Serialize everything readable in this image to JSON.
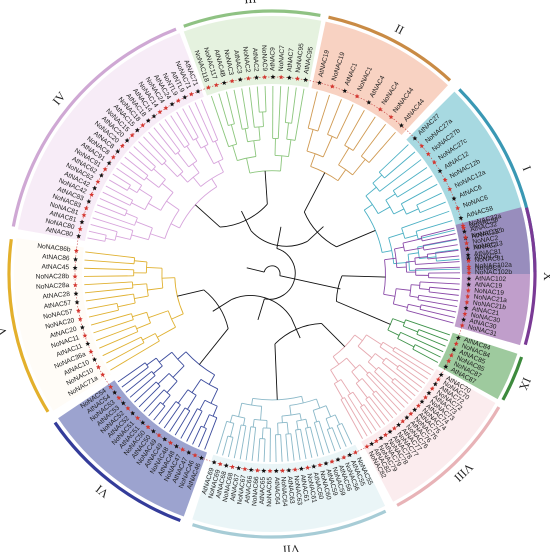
{
  "figure": {
    "type": "circular phylogenetic tree",
    "species_markers": {
      "black_star": "At",
      "red_star": "No"
    }
  },
  "clades": [
    {
      "id": "I",
      "label": "I",
      "color": "#3a98b4",
      "branch_color": "#4bb0c4",
      "fill": "#5fb9c9",
      "leaves": [
        "AtNAC27",
        "NoNAC27a",
        "NoNAC27b",
        "NoNAC27c",
        "AtNAC12",
        "NoNAC12b",
        "NoNAC12a",
        "AtNAC6",
        "NoNAC6",
        "AtNAC58",
        "NoNAC58",
        "AtNAC13",
        "NoNAC13",
        "AtNAC5",
        "NoNAC5"
      ]
    },
    {
      "id": "II",
      "label": "II",
      "color": "#c98b45",
      "branch_color": "#d09a52",
      "fill": "#f3ad8f",
      "leaves": [
        "AtNAC19",
        "NoNAC19",
        "AtNAC1",
        "NoNAC1",
        "AtNAC4",
        "NoNAC4",
        "NoNAC44",
        "AtNAC44"
      ]
    },
    {
      "id": "III",
      "label": "III",
      "color": "#8fc283",
      "branch_color": "#8cc67d",
      "fill": "#cfe8c4",
      "leaves": [
        "NoNAC118",
        "NoNAC117",
        "AtNAC4B",
        "NoNAC3",
        "AtNAC3",
        "NoNAC2",
        "AtNAC2",
        "NoNAC9",
        "AtNAC9",
        "NoNAC7",
        "AtNAC7",
        "NoNAC95",
        "AtNAC95"
      ]
    },
    {
      "id": "IV",
      "label": "IV",
      "color": "#cfa8d4",
      "branch_color": "#d7a4dc",
      "fill": "#f1ddf1",
      "leaves": [
        "AtNAC80",
        "NoNAC80",
        "AtNAC81",
        "NoNAC81",
        "NoNAC83",
        "AtNAC83",
        "NoNAC42",
        "AtNAC42",
        "NoNAC62",
        "AtNAC62",
        "NoNAC91",
        "AtNAC91",
        "NoNAC8",
        "AtNAC8",
        "NoNAC20",
        "AtNAC20",
        "NoNAC15",
        "AtNAC15",
        "NoNAC18",
        "AtNAC18",
        "AtNAC14",
        "NoNAC14",
        "NoNAC24",
        "AtNAC24",
        "NoNTL9",
        "AtNTL9",
        "NoNAC71",
        "AtNAC71"
      ]
    },
    {
      "id": "V",
      "label": "V",
      "color": "#e3b02c",
      "branch_color": "#e0b131",
      "fill": "#fffaf0",
      "leaves": [
        "NoNAC71a",
        "NoNAC10",
        "AtNAC10",
        "NoNAC36a",
        "AtNAC11",
        "NoNAC11",
        "AtNAC20",
        "NoNAC20",
        "NoNAC57",
        "AtNAC57",
        "AtNAC28",
        "NoNAC28a",
        "NoNAC28b",
        "AtNAC45",
        "AtNAC86",
        "NoNAC86b"
      ]
    },
    {
      "id": "VI",
      "label": "VI",
      "color": "#343c9a",
      "branch_color": "#3a4a9c",
      "fill": "#4a57a8",
      "leaves": [
        "AtNAC46",
        "NoNAC46",
        "AtNAC47",
        "NoNAC47",
        "AtNAC48",
        "NoNAC48",
        "AtNAC49",
        "NoNAC49",
        "AtNAC50",
        "NoNAC50",
        "AtNAC51",
        "NoNAC51",
        "AtNAC52",
        "NoNAC52",
        "AtNAC53",
        "NoNAC53",
        "AtNAC54",
        "NoNAC54"
      ]
    },
    {
      "id": "VII",
      "label": "VII",
      "color": "#a7ccd6",
      "branch_color": "#8ab8c8",
      "fill": "#d9ecf1",
      "leaves": [
        "NoNAC55",
        "AtNAC55",
        "NoNAC56",
        "AtNAC56",
        "NoNAC59",
        "AtNAC59",
        "NoNAC60",
        "AtNAC60",
        "NoNAC61",
        "AtNAC61",
        "NoNAC63",
        "AtNAC63",
        "NoNAC64",
        "AtNAC64",
        "NoNAC65",
        "AtNAC65",
        "NoNAC66",
        "AtNAC66",
        "NoNAC67",
        "AtNAC67",
        "NoNAC68",
        "AtNAC68",
        "NoNAC69",
        "AtNAC69"
      ]
    },
    {
      "id": "VIII",
      "label": "VIII",
      "color": "#e8b3b7",
      "branch_color": "#e6a9b0",
      "fill": "#f7dde0",
      "leaves": [
        "AtNAC70",
        "NoNAC70",
        "AtNAC72",
        "NoNAC72",
        "AtNAC73",
        "NoNAC73",
        "AtNAC74",
        "NoNAC74",
        "AtNAC75",
        "NoNAC75",
        "AtNAC76",
        "NoNAC76",
        "AtNAC77",
        "NoNAC77",
        "AtNAC78",
        "NoNAC78",
        "AtNAC79",
        "NoNAC79",
        "AtNAC82",
        "NoNAC82"
      ]
    },
    {
      "id": "IX",
      "label": "IX",
      "color": "#3d8a3d",
      "branch_color": "#3c9148",
      "fill": "#4e9e4e",
      "leaves": [
        "AtNAC84",
        "NoNAC84",
        "AtNAC85",
        "NoNAC85",
        "NoNAC87",
        "AtNAC87"
      ]
    },
    {
      "id": "X",
      "label": "X",
      "color": "#7a3a95",
      "branch_color": "#8a4aa8",
      "fill": "#8d4fa0",
      "leaves": [
        "NoNAC32a",
        "AtNAC32",
        "NoNAC32b",
        "NoNAC2",
        "AtNAC2",
        "AtNAC81",
        "NoNAC81",
        "NoNAC102a",
        "NoNAC102b",
        "AtNAC102",
        "AtNAC19",
        "NoNAC19",
        "NoNAC21a",
        "NoNAC21b",
        "AtNAC21",
        "NoNAC30",
        "AtNAC30",
        "NoNAC31"
      ]
    }
  ]
}
